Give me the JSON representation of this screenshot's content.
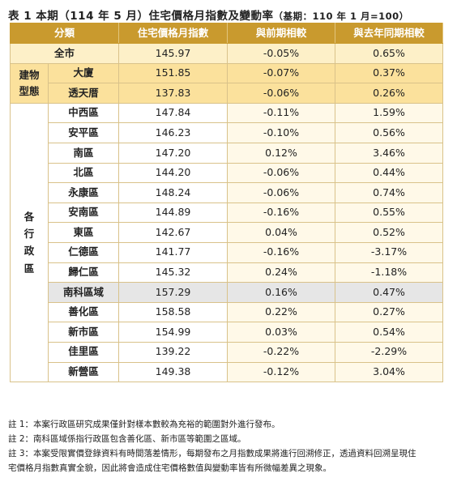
{
  "title": {
    "main": "表 1 本期（114 年 5 月）住宅價格月指數及變動率",
    "base": "（基期：110 年 1 月=100）"
  },
  "headers": [
    "分類",
    "住宅價格月指數",
    "與前期相較",
    "與去年同期相較"
  ],
  "groups": {
    "type_label": "建物\n型態",
    "admin_label": "各\n行\n政\n區"
  },
  "rows": {
    "all": {
      "name": "全市",
      "index": "145.97",
      "mom": "-0.05%",
      "yoy": "0.65%"
    },
    "types": [
      {
        "name": "大廈",
        "index": "151.85",
        "mom": "-0.07%",
        "yoy": "0.37%"
      },
      {
        "name": "透天厝",
        "index": "137.83",
        "mom": "-0.06%",
        "yoy": "0.26%"
      }
    ],
    "districts": [
      {
        "name": "中西區",
        "index": "147.84",
        "mom": "-0.11%",
        "yoy": "1.59%"
      },
      {
        "name": "安平區",
        "index": "146.23",
        "mom": "-0.10%",
        "yoy": "0.56%"
      },
      {
        "name": "南區",
        "index": "147.20",
        "mom": "0.12%",
        "yoy": "3.46%"
      },
      {
        "name": "北區",
        "index": "144.20",
        "mom": "-0.06%",
        "yoy": "0.44%"
      },
      {
        "name": "永康區",
        "index": "148.24",
        "mom": "-0.06%",
        "yoy": "0.74%"
      },
      {
        "name": "安南區",
        "index": "144.89",
        "mom": "-0.16%",
        "yoy": "0.55%"
      },
      {
        "name": "東區",
        "index": "142.67",
        "mom": "0.04%",
        "yoy": "0.52%"
      },
      {
        "name": "仁德區",
        "index": "141.77",
        "mom": "-0.16%",
        "yoy": "-3.17%"
      },
      {
        "name": "歸仁區",
        "index": "145.32",
        "mom": "0.24%",
        "yoy": "-1.18%"
      },
      {
        "name": "南科區域",
        "index": "157.29",
        "mom": "0.16%",
        "yoy": "0.47%"
      },
      {
        "name": "善化區",
        "index": "158.58",
        "mom": "0.22%",
        "yoy": "0.27%"
      },
      {
        "name": "新市區",
        "index": "154.99",
        "mom": "0.03%",
        "yoy": "0.54%"
      },
      {
        "name": "佳里區",
        "index": "139.22",
        "mom": "-0.22%",
        "yoy": "-2.29%"
      },
      {
        "name": "新營區",
        "index": "149.38",
        "mom": "-0.12%",
        "yoy": "3.04%"
      }
    ]
  },
  "notes": [
    "註 1：本案行政區研究成果僅針對樣本數較為充裕的範圍對外進行發布。",
    "註 2：南科區域係指行政區包含善化區、新市區等範圍之區域。",
    "註 3：本案受限實價登錄資料有時間落差情形，每期發布之月指數成果將進行回溯修正，透過資料回溯呈現住",
    "宅價格月指數真實全貌，因此將會造成住宅價格數值與變動率皆有所微幅差異之現象。"
  ],
  "colors": {
    "header_bg": "#c99a2e",
    "type_row_bg": "#fbe19c",
    "all_row_bg": "#fdf0c8",
    "highlight_row_bg": "#e6e6e6",
    "compare_col_bg": "#fff9e8"
  }
}
